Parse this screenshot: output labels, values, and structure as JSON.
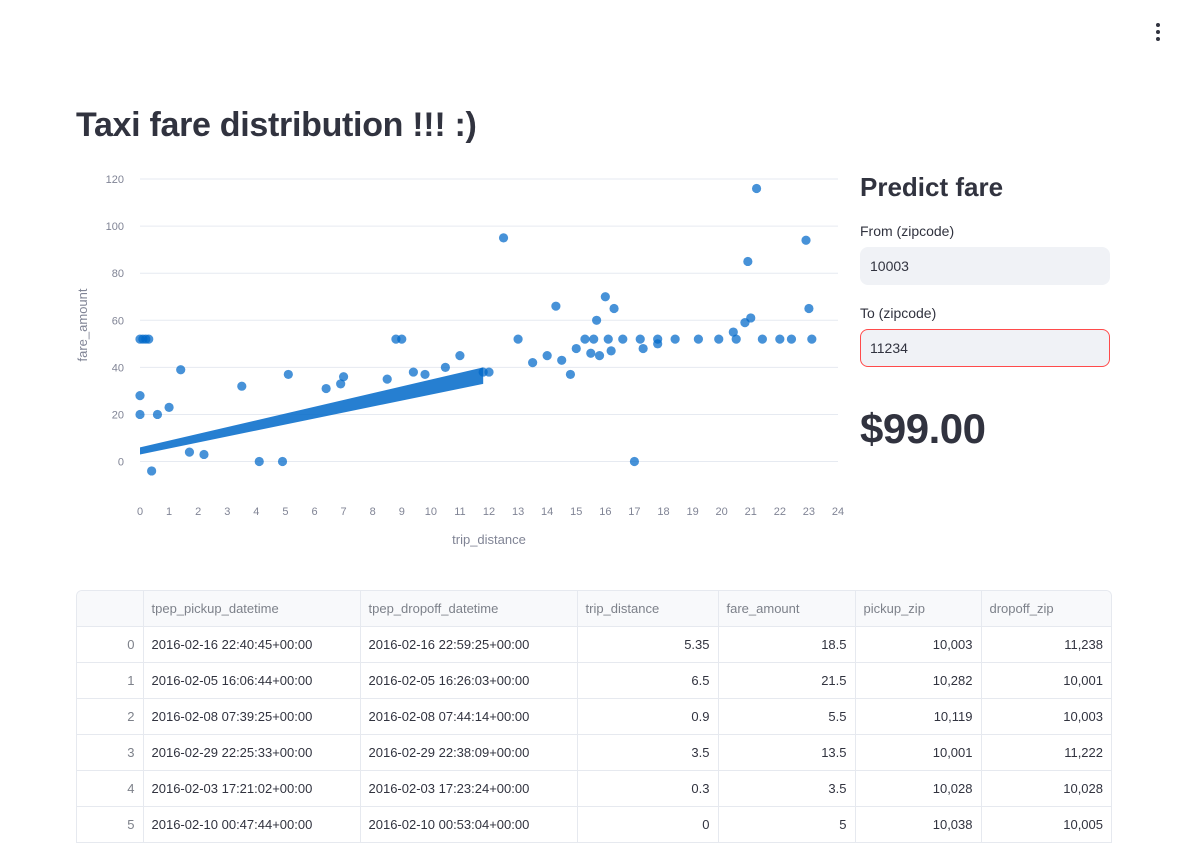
{
  "app": {
    "title": "Taxi fare distribution !!! :)",
    "menu_icon": "kebab-menu-icon"
  },
  "chart_data": {
    "type": "scatter",
    "title": "",
    "xlabel": "trip_distance",
    "ylabel": "fare_amount",
    "xlim": [
      0,
      24
    ],
    "ylim": [
      -7,
      123
    ],
    "xticks": [
      "0",
      "1",
      "2",
      "3",
      "4",
      "5",
      "6",
      "7",
      "8",
      "9",
      "10",
      "11",
      "12",
      "13",
      "14",
      "15",
      "16",
      "17",
      "18",
      "19",
      "20",
      "21",
      "22",
      "23",
      "24"
    ],
    "yticks": [
      "0",
      "20",
      "40",
      "60",
      "80",
      "100",
      "120"
    ],
    "marker_color": "#0068c9",
    "grid": true,
    "points": [
      [
        0,
        52
      ],
      [
        0.1,
        52
      ],
      [
        0.2,
        52
      ],
      [
        0.3,
        52
      ],
      [
        0,
        28
      ],
      [
        0,
        20
      ],
      [
        0.4,
        -4
      ],
      [
        0.6,
        20
      ],
      [
        1,
        23
      ],
      [
        1.4,
        39
      ],
      [
        1.7,
        4
      ],
      [
        2.2,
        3
      ],
      [
        4.1,
        0
      ],
      [
        4.9,
        0
      ],
      [
        12.5,
        95
      ],
      [
        21.2,
        116
      ],
      [
        20.9,
        85
      ],
      [
        22.9,
        94
      ],
      [
        23,
        65
      ],
      [
        23.1,
        52
      ],
      [
        21,
        61
      ],
      [
        20.8,
        59
      ],
      [
        20.4,
        55
      ],
      [
        16,
        70
      ],
      [
        16.3,
        65
      ],
      [
        14.3,
        66
      ],
      [
        15.7,
        60
      ],
      [
        13,
        52
      ],
      [
        17,
        0
      ],
      [
        8.8,
        52
      ],
      [
        9,
        52
      ],
      [
        11,
        45
      ],
      [
        12,
        38
      ],
      [
        13.5,
        42
      ],
      [
        14,
        45
      ],
      [
        14.5,
        43
      ],
      [
        15,
        48
      ],
      [
        15.5,
        46
      ],
      [
        15.8,
        45
      ],
      [
        16.2,
        47
      ],
      [
        17.3,
        48
      ],
      [
        17.8,
        50
      ],
      [
        15.3,
        52
      ],
      [
        15.6,
        52
      ],
      [
        16.1,
        52
      ],
      [
        16.6,
        52
      ],
      [
        17.2,
        52
      ],
      [
        17.8,
        52
      ],
      [
        18.4,
        52
      ],
      [
        19.2,
        52
      ],
      [
        19.9,
        52
      ],
      [
        20.5,
        52
      ],
      [
        21.4,
        52
      ],
      [
        22,
        52
      ],
      [
        22.4,
        52
      ],
      [
        10.5,
        40
      ],
      [
        9.8,
        37
      ],
      [
        7,
        36
      ],
      [
        6.4,
        31
      ],
      [
        3.5,
        32
      ],
      [
        5.1,
        37
      ],
      [
        6.9,
        33
      ],
      [
        8.5,
        35
      ],
      [
        9.4,
        38
      ],
      [
        11.8,
        38
      ],
      [
        14.8,
        37
      ]
    ],
    "trend_band": {
      "x": [
        0,
        11.8
      ],
      "y_low": [
        3,
        33
      ],
      "y_high": [
        6,
        40
      ]
    }
  },
  "predict": {
    "heading": "Predict fare",
    "from_label": "From (zipcode)",
    "from_value": "10003",
    "to_label": "To (zipcode)",
    "to_value": "11234",
    "fare": "$99.00",
    "error_color": "#ff4b4b"
  },
  "table": {
    "columns": [
      "",
      "tpep_pickup_datetime",
      "tpep_dropoff_datetime",
      "trip_distance",
      "fare_amount",
      "pickup_zip",
      "dropoff_zip"
    ],
    "rows": [
      [
        "0",
        "2016-02-16 22:40:45+00:00",
        "2016-02-16 22:59:25+00:00",
        "5.35",
        "18.5",
        "10,003",
        "11,238"
      ],
      [
        "1",
        "2016-02-05 16:06:44+00:00",
        "2016-02-05 16:26:03+00:00",
        "6.5",
        "21.5",
        "10,282",
        "10,001"
      ],
      [
        "2",
        "2016-02-08 07:39:25+00:00",
        "2016-02-08 07:44:14+00:00",
        "0.9",
        "5.5",
        "10,119",
        "10,003"
      ],
      [
        "3",
        "2016-02-29 22:25:33+00:00",
        "2016-02-29 22:38:09+00:00",
        "3.5",
        "13.5",
        "10,001",
        "11,222"
      ],
      [
        "4",
        "2016-02-03 17:21:02+00:00",
        "2016-02-03 17:23:24+00:00",
        "0.3",
        "3.5",
        "10,028",
        "10,028"
      ],
      [
        "5",
        "2016-02-10 00:47:44+00:00",
        "2016-02-10 00:53:04+00:00",
        "0",
        "5",
        "10,038",
        "10,005"
      ],
      [
        "",
        "",
        "",
        "",
        "",
        "",
        ""
      ]
    ]
  }
}
